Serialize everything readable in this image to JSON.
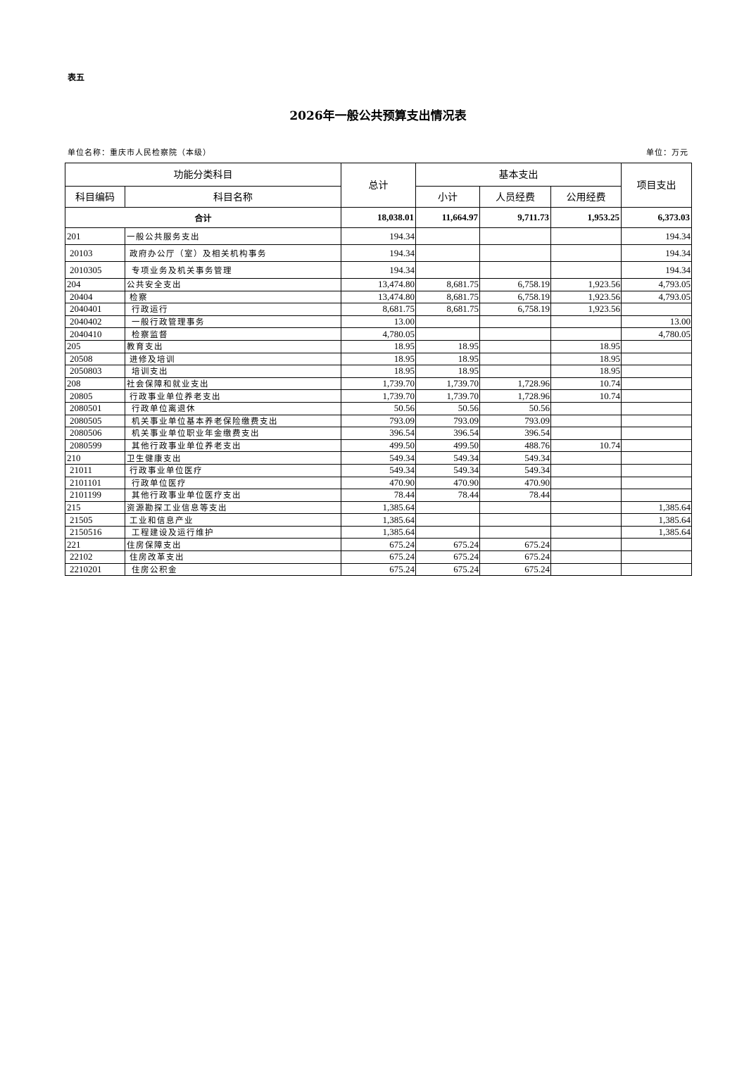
{
  "table_no": "表五",
  "title": "2026年一般公共预算支出情况表",
  "unit_name": "单位名称：重庆市人民检察院（本级）",
  "unit": "单位：万元",
  "headers": {
    "func_class": "功能分类科目",
    "code": "科目编码",
    "name": "科目名称",
    "total": "总计",
    "basic": "基本支出",
    "subtotal": "小计",
    "personnel": "人员经费",
    "public": "公用经费",
    "project": "项目支出"
  },
  "total_row": {
    "label": "合计",
    "total": "18,038.01",
    "subtotal": "11,664.97",
    "personnel": "9,711.73",
    "public": "1,953.25",
    "project": "6,373.03"
  },
  "rows": [
    {
      "code": "201",
      "name": "一般公共服务支出",
      "level": 1,
      "total": "194.34",
      "subtotal": "",
      "personnel": "",
      "public": "",
      "project": "194.34"
    },
    {
      "code": "20103",
      "name": "政府办公厅（室）及相关机构事务",
      "level": 2,
      "total": "194.34",
      "subtotal": "",
      "personnel": "",
      "public": "",
      "project": "194.34"
    },
    {
      "code": "2010305",
      "name": "专项业务及机关事务管理",
      "level": 3,
      "total": "194.34",
      "subtotal": "",
      "personnel": "",
      "public": "",
      "project": "194.34"
    },
    {
      "code": "204",
      "name": "公共安全支出",
      "level": 1,
      "total": "13,474.80",
      "subtotal": "8,681.75",
      "personnel": "6,758.19",
      "public": "1,923.56",
      "project": "4,793.05"
    },
    {
      "code": "20404",
      "name": "检察",
      "level": 2,
      "total": "13,474.80",
      "subtotal": "8,681.75",
      "personnel": "6,758.19",
      "public": "1,923.56",
      "project": "4,793.05"
    },
    {
      "code": "2040401",
      "name": "行政运行",
      "level": 3,
      "total": "8,681.75",
      "subtotal": "8,681.75",
      "personnel": "6,758.19",
      "public": "1,923.56",
      "project": ""
    },
    {
      "code": "2040402",
      "name": "一般行政管理事务",
      "level": 3,
      "total": "13.00",
      "subtotal": "",
      "personnel": "",
      "public": "",
      "project": "13.00"
    },
    {
      "code": "2040410",
      "name": "检察监督",
      "level": 3,
      "total": "4,780.05",
      "subtotal": "",
      "personnel": "",
      "public": "",
      "project": "4,780.05"
    },
    {
      "code": "205",
      "name": "教育支出",
      "level": 1,
      "total": "18.95",
      "subtotal": "18.95",
      "personnel": "",
      "public": "18.95",
      "project": ""
    },
    {
      "code": "20508",
      "name": "进修及培训",
      "level": 2,
      "total": "18.95",
      "subtotal": "18.95",
      "personnel": "",
      "public": "18.95",
      "project": ""
    },
    {
      "code": "2050803",
      "name": "培训支出",
      "level": 3,
      "total": "18.95",
      "subtotal": "18.95",
      "personnel": "",
      "public": "18.95",
      "project": ""
    },
    {
      "code": "208",
      "name": "社会保障和就业支出",
      "level": 1,
      "total": "1,739.70",
      "subtotal": "1,739.70",
      "personnel": "1,728.96",
      "public": "10.74",
      "project": ""
    },
    {
      "code": "20805",
      "name": "行政事业单位养老支出",
      "level": 2,
      "total": "1,739.70",
      "subtotal": "1,739.70",
      "personnel": "1,728.96",
      "public": "10.74",
      "project": ""
    },
    {
      "code": "2080501",
      "name": "行政单位离退休",
      "level": 3,
      "total": "50.56",
      "subtotal": "50.56",
      "personnel": "50.56",
      "public": "",
      "project": ""
    },
    {
      "code": "2080505",
      "name": "机关事业单位基本养老保险缴费支出",
      "level": 3,
      "total": "793.09",
      "subtotal": "793.09",
      "personnel": "793.09",
      "public": "",
      "project": ""
    },
    {
      "code": "2080506",
      "name": "机关事业单位职业年金缴费支出",
      "level": 3,
      "total": "396.54",
      "subtotal": "396.54",
      "personnel": "396.54",
      "public": "",
      "project": ""
    },
    {
      "code": "2080599",
      "name": "其他行政事业单位养老支出",
      "level": 3,
      "total": "499.50",
      "subtotal": "499.50",
      "personnel": "488.76",
      "public": "10.74",
      "project": ""
    },
    {
      "code": "210",
      "name": "卫生健康支出",
      "level": 1,
      "total": "549.34",
      "subtotal": "549.34",
      "personnel": "549.34",
      "public": "",
      "project": ""
    },
    {
      "code": "21011",
      "name": "行政事业单位医疗",
      "level": 2,
      "total": "549.34",
      "subtotal": "549.34",
      "personnel": "549.34",
      "public": "",
      "project": ""
    },
    {
      "code": "2101101",
      "name": "行政单位医疗",
      "level": 3,
      "total": "470.90",
      "subtotal": "470.90",
      "personnel": "470.90",
      "public": "",
      "project": ""
    },
    {
      "code": "2101199",
      "name": "其他行政事业单位医疗支出",
      "level": 3,
      "total": "78.44",
      "subtotal": "78.44",
      "personnel": "78.44",
      "public": "",
      "project": ""
    },
    {
      "code": "215",
      "name": "资源勘探工业信息等支出",
      "level": 1,
      "total": "1,385.64",
      "subtotal": "",
      "personnel": "",
      "public": "",
      "project": "1,385.64"
    },
    {
      "code": "21505",
      "name": "工业和信息产业",
      "level": 2,
      "total": "1,385.64",
      "subtotal": "",
      "personnel": "",
      "public": "",
      "project": "1,385.64"
    },
    {
      "code": "2150516",
      "name": "工程建设及运行维护",
      "level": 3,
      "total": "1,385.64",
      "subtotal": "",
      "personnel": "",
      "public": "",
      "project": "1,385.64"
    },
    {
      "code": "221",
      "name": "住房保障支出",
      "level": 1,
      "total": "675.24",
      "subtotal": "675.24",
      "personnel": "675.24",
      "public": "",
      "project": ""
    },
    {
      "code": "22102",
      "name": "住房改革支出",
      "level": 2,
      "total": "675.24",
      "subtotal": "675.24",
      "personnel": "675.24",
      "public": "",
      "project": ""
    },
    {
      "code": "2210201",
      "name": "住房公积金",
      "level": 3,
      "total": "675.24",
      "subtotal": "675.24",
      "personnel": "675.24",
      "public": "",
      "project": ""
    }
  ]
}
